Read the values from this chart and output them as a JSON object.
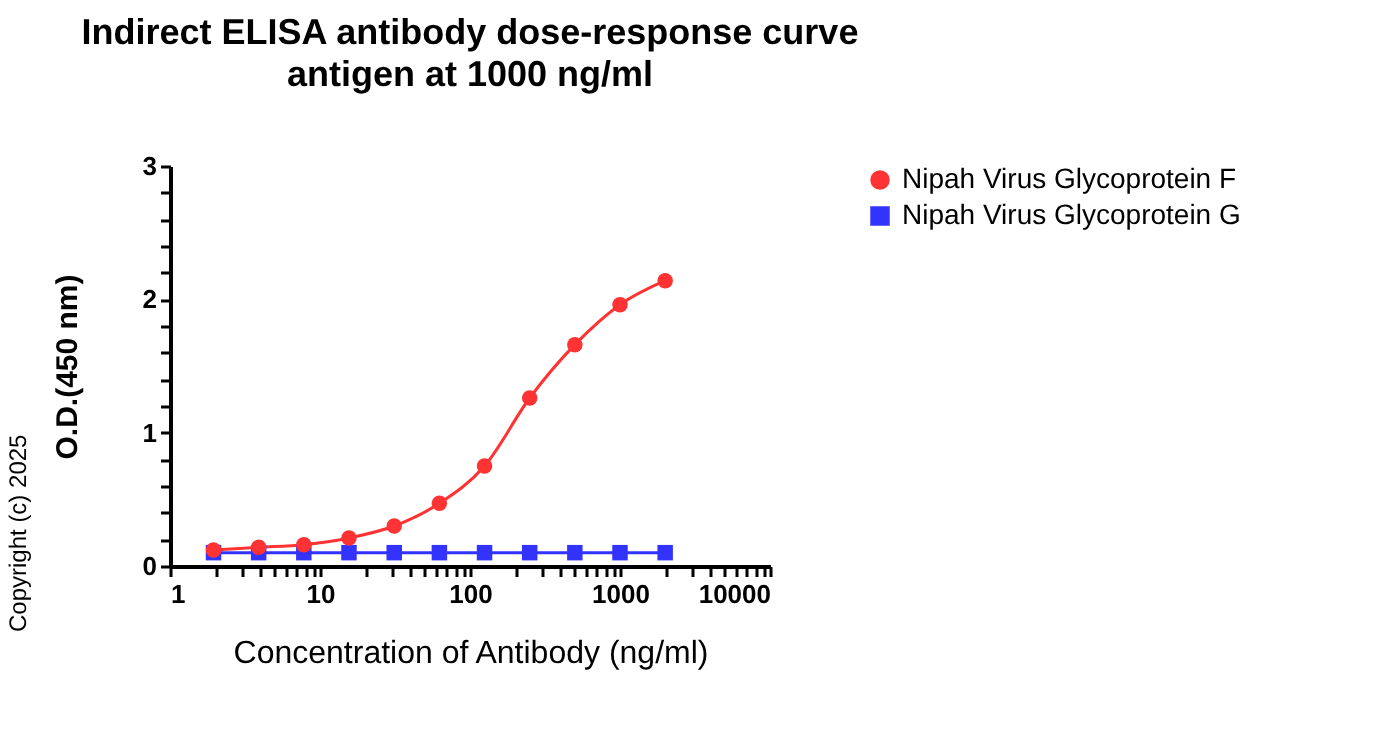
{
  "chart_data": {
    "type": "line",
    "title": "Indirect ELISA antibody dose-response curve",
    "subtitle": "antigen at 1000 ng/ml",
    "xlabel": "Concentration of Antibody (ng/ml)",
    "ylabel": "O.D.(450 nm)",
    "log": "x",
    "x": [
      1.95,
      3.9,
      7.8,
      15.6,
      31.25,
      62.5,
      125,
      250,
      500,
      1000,
      2000
    ],
    "series": [
      {
        "name": "Nipah Virus Glycoprotein F",
        "color": "#ff3333",
        "marker": "circle",
        "values": [
          0.12,
          0.14,
          0.16,
          0.21,
          0.3,
          0.47,
          0.75,
          1.26,
          1.66,
          1.96,
          2.14
        ]
      },
      {
        "name": "Nipah Virus Glycoprotein G",
        "color": "#3333ff",
        "marker": "square",
        "values": [
          0.1,
          0.1,
          0.1,
          0.1,
          0.1,
          0.1,
          0.1,
          0.1,
          0.1,
          0.1,
          0.1
        ]
      }
    ],
    "xlim": [
      1,
      10000
    ],
    "xticks": [
      1,
      {
        "value": 2,
        "label": null
      },
      {
        "value": 3,
        "label": null
      },
      {
        "value": 4,
        "label": null
      },
      {
        "value": 5,
        "label": null
      },
      {
        "value": 6,
        "label": null
      },
      {
        "value": 7,
        "label": null
      },
      {
        "value": 8,
        "label": null
      },
      {
        "value": 9,
        "label": null
      },
      10,
      {
        "value": 20,
        "label": null
      },
      {
        "value": 30,
        "label": null
      },
      {
        "value": 40,
        "label": null
      },
      {
        "value": 50,
        "label": null
      },
      {
        "value": 60,
        "label": null
      },
      {
        "value": 70,
        "label": null
      },
      {
        "value": 80,
        "label": null
      },
      {
        "value": 90,
        "label": null
      },
      100,
      {
        "value": 200,
        "label": null
      },
      {
        "value": 300,
        "label": null
      },
      {
        "value": 400,
        "label": null
      },
      {
        "value": 500,
        "label": null
      },
      {
        "value": 600,
        "label": null
      },
      {
        "value": 700,
        "label": null
      },
      {
        "value": 800,
        "label": null
      },
      {
        "value": 900,
        "label": null
      },
      1000,
      {
        "value": 2000,
        "label": null
      },
      {
        "value": 3000,
        "label": null
      },
      {
        "value": 4000,
        "label": null
      },
      {
        "value": 5000,
        "label": null
      },
      {
        "value": 6000,
        "label": null
      },
      {
        "value": 7000,
        "label": null
      },
      {
        "value": 8000,
        "label": null
      },
      {
        "value": 9000,
        "label": null
      },
      10000
    ],
    "ylim": [
      0,
      3
    ],
    "yticks": [
      0,
      {
        "value": 0.2,
        "label": null
      },
      {
        "value": 0.4,
        "label": null
      },
      {
        "value": 0.6,
        "label": null
      },
      {
        "value": 0.8,
        "label": null
      },
      1,
      {
        "value": 1.2,
        "label": null
      },
      {
        "value": 1.4,
        "label": null
      },
      {
        "value": 1.6,
        "label": null
      },
      {
        "value": 1.8,
        "label": null
      },
      2,
      {
        "value": 2.2,
        "label": null
      },
      {
        "value": 2.4,
        "label": null
      },
      {
        "value": 2.6,
        "label": null
      },
      {
        "value": 2.8,
        "label": null
      },
      3
    ],
    "grid": false,
    "legend": "top right",
    "annotations": [
      "Copyright (c) 2025"
    ]
  }
}
